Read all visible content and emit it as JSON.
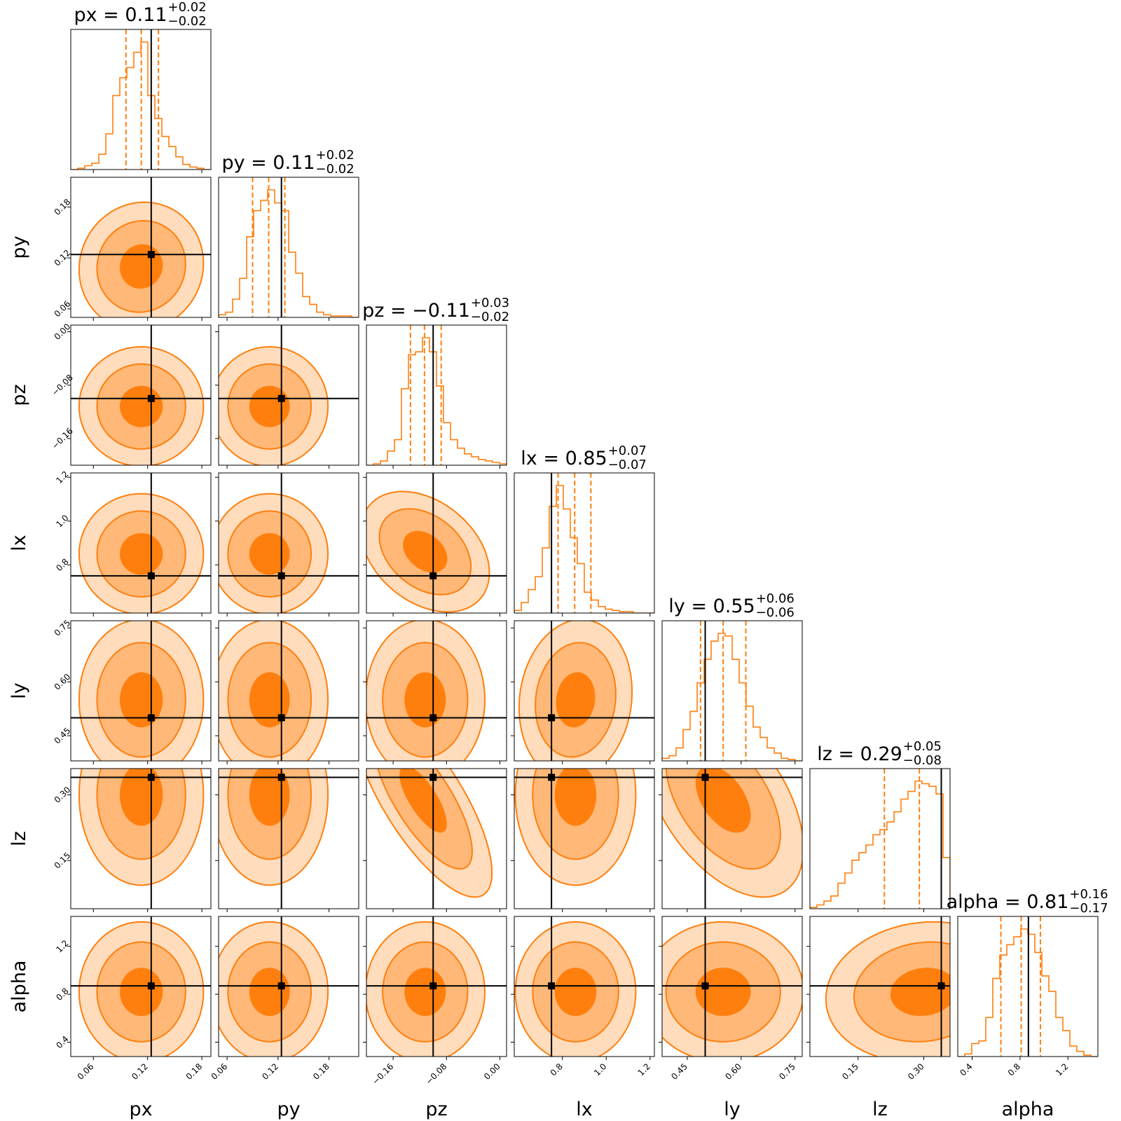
{
  "chart_data": {
    "type": "corner",
    "parameters": [
      {
        "name": "px",
        "range": [
          0.035,
          0.19
        ],
        "ticks": [
          0.06,
          0.12,
          0.18
        ],
        "tick_labels": [
          "0.06",
          "0.12",
          "0.18"
        ],
        "truth": 0.124,
        "title": {
          "prefix": "px = ",
          "median": "0.11",
          "plus": "+0.02",
          "minus": "−0.02"
        },
        "quantiles": [
          0.096,
          0.113,
          0.132
        ],
        "hist": [
          0,
          0.01,
          0.03,
          0.05,
          0.12,
          0.28,
          0.58,
          0.72,
          0.8,
          0.92,
          1.0,
          0.58,
          0.4,
          0.26,
          0.18,
          0.1,
          0.04,
          0.02,
          0.01,
          0
        ]
      },
      {
        "name": "py",
        "range": [
          0.05,
          0.215
        ],
        "ticks": [
          0.06,
          0.12,
          0.18
        ],
        "tick_labels": [
          "0.06",
          "0.12",
          "0.18"
        ],
        "truth": 0.124,
        "title": {
          "prefix": "py = ",
          "median": "0.11",
          "plus": "+0.02",
          "minus": "−0.02"
        },
        "quantiles": [
          0.09,
          0.109,
          0.128
        ],
        "hist": [
          0.02,
          0.04,
          0.14,
          0.3,
          0.62,
          0.82,
          0.9,
          0.98,
          0.88,
          0.82,
          0.5,
          0.34,
          0.16,
          0.1,
          0.04,
          0.02,
          0.01,
          0.01,
          0.01,
          0
        ]
      },
      {
        "name": "pz",
        "range": [
          -0.2,
          0.01
        ],
        "ticks": [
          -0.16,
          -0.08,
          0.0
        ],
        "tick_labels": [
          "−0.16",
          "−0.08",
          "0.00"
        ],
        "truth": -0.1,
        "title": {
          "prefix": "pz = ",
          "median": "−0.11",
          "plus": "+0.03",
          "minus": "−0.02"
        },
        "quantiles": [
          -0.134,
          -0.113,
          -0.088
        ],
        "hist": [
          0,
          0.01,
          0.03,
          0.1,
          0.18,
          0.54,
          0.78,
          0.8,
          0.9,
          0.8,
          0.56,
          0.3,
          0.18,
          0.12,
          0.08,
          0.06,
          0.04,
          0.03,
          0.02,
          0.01
        ]
      },
      {
        "name": "lx",
        "range": [
          0.58,
          1.22
        ],
        "ticks": [
          0.8,
          1.0,
          1.2
        ],
        "tick_labels": [
          "0.8",
          "1.0",
          "1.2"
        ],
        "truth": 0.75,
        "title": {
          "prefix": "lx = ",
          "median": "0.85",
          "plus": "+0.07",
          "minus": "−0.07"
        },
        "quantiles": [
          0.78,
          0.856,
          0.93
        ],
        "hist": [
          0.02,
          0.08,
          0.18,
          0.28,
          0.5,
          0.82,
          0.98,
          0.8,
          0.58,
          0.38,
          0.16,
          0.1,
          0.05,
          0.03,
          0.02,
          0.01,
          0.01,
          0,
          0,
          0
        ]
      },
      {
        "name": "ly",
        "range": [
          0.38,
          0.77
        ],
        "ticks": [
          0.45,
          0.6,
          0.75
        ],
        "tick_labels": [
          "0.45",
          "0.60",
          "0.75"
        ],
        "truth": 0.5,
        "title": {
          "prefix": "ly = ",
          "median": "0.55",
          "plus": "+0.06",
          "minus": "−0.06"
        },
        "quantiles": [
          0.487,
          0.55,
          0.613
        ],
        "hist": [
          0.02,
          0.04,
          0.1,
          0.24,
          0.38,
          0.6,
          0.78,
          0.92,
          0.98,
          0.96,
          0.78,
          0.6,
          0.42,
          0.26,
          0.18,
          0.1,
          0.06,
          0.02,
          0.01,
          0
        ]
      },
      {
        "name": "lz",
        "range": [
          0.04,
          0.36
        ],
        "ticks": [
          0.15,
          0.3
        ],
        "tick_labels": [
          "0.15",
          "0.30"
        ],
        "truth": 0.34,
        "title": {
          "prefix": "lz = ",
          "median": "0.29",
          "plus": "+0.05",
          "minus": "−0.08"
        },
        "quantiles": [
          0.21,
          0.29,
          0.34
        ],
        "hist": [
          0.01,
          0.03,
          0.06,
          0.1,
          0.2,
          0.28,
          0.38,
          0.44,
          0.5,
          0.58,
          0.62,
          0.68,
          0.76,
          0.86,
          0.92,
          1.0,
          0.98,
          0.96,
          0.9,
          0.4
        ]
      },
      {
        "name": "alpha",
        "range": [
          0.28,
          1.45
        ],
        "ticks": [
          0.4,
          0.8,
          1.2
        ],
        "tick_labels": [
          "0.4",
          "0.8",
          "1.2"
        ],
        "truth": 0.87,
        "title": {
          "prefix": "alpha = ",
          "median": "0.81",
          "plus": "+0.16",
          "minus": "−0.17"
        },
        "quantiles": [
          0.64,
          0.81,
          0.97
        ],
        "hist": [
          0,
          0.02,
          0.1,
          0.12,
          0.3,
          0.6,
          0.78,
          0.86,
          0.92,
          0.98,
          0.94,
          0.8,
          0.62,
          0.5,
          0.3,
          0.2,
          0.08,
          0.04,
          0.01,
          0
        ]
      }
    ],
    "pairs": [
      {
        "x": "px",
        "y": "py",
        "center": [
          0.113,
          0.11
        ],
        "sigma": [
          0.02,
          0.022
        ],
        "rho": 0.05
      },
      {
        "x": "px",
        "y": "pz",
        "center": [
          0.113,
          -0.112
        ],
        "sigma": [
          0.02,
          0.026
        ],
        "rho": 0.0
      },
      {
        "x": "py",
        "y": "pz",
        "center": [
          0.11,
          -0.112
        ],
        "sigma": [
          0.02,
          0.026
        ],
        "rho": 0.0
      },
      {
        "x": "px",
        "y": "lx",
        "center": [
          0.113,
          0.85
        ],
        "sigma": [
          0.02,
          0.08
        ],
        "rho": 0.0
      },
      {
        "x": "py",
        "y": "lx",
        "center": [
          0.11,
          0.85
        ],
        "sigma": [
          0.02,
          0.08
        ],
        "rho": 0.0
      },
      {
        "x": "pz",
        "y": "lx",
        "center": [
          -0.112,
          0.86
        ],
        "sigma": [
          0.028,
          0.08
        ],
        "rho": -0.35
      },
      {
        "x": "px",
        "y": "ly",
        "center": [
          0.113,
          0.55
        ],
        "sigma": [
          0.02,
          0.065
        ],
        "rho": 0.0
      },
      {
        "x": "py",
        "y": "ly",
        "center": [
          0.11,
          0.55
        ],
        "sigma": [
          0.02,
          0.065
        ],
        "rho": 0.0
      },
      {
        "x": "pz",
        "y": "ly",
        "center": [
          -0.112,
          0.55
        ],
        "sigma": [
          0.026,
          0.065
        ],
        "rho": 0.0
      },
      {
        "x": "lx",
        "y": "ly",
        "center": [
          0.86,
          0.55
        ],
        "sigma": [
          0.075,
          0.065
        ],
        "rho": 0.1
      },
      {
        "x": "px",
        "y": "lz",
        "center": [
          0.113,
          0.3
        ],
        "sigma": [
          0.02,
          0.06
        ],
        "rho": 0.0
      },
      {
        "x": "py",
        "y": "lz",
        "center": [
          0.11,
          0.3
        ],
        "sigma": [
          0.02,
          0.06
        ],
        "rho": 0.0
      },
      {
        "x": "pz",
        "y": "lz",
        "center": [
          -0.115,
          0.29
        ],
        "sigma": [
          0.03,
          0.065
        ],
        "rho": -0.75
      },
      {
        "x": "lx",
        "y": "lz",
        "center": [
          0.86,
          0.3
        ],
        "sigma": [
          0.08,
          0.06
        ],
        "rho": 0.0
      },
      {
        "x": "ly",
        "y": "lz",
        "center": [
          0.55,
          0.29
        ],
        "sigma": [
          0.065,
          0.065
        ],
        "rho": -0.5
      },
      {
        "x": "px",
        "y": "alpha",
        "center": [
          0.113,
          0.82
        ],
        "sigma": [
          0.02,
          0.17
        ],
        "rho": 0.0
      },
      {
        "x": "py",
        "y": "alpha",
        "center": [
          0.11,
          0.82
        ],
        "sigma": [
          0.02,
          0.17
        ],
        "rho": 0.0
      },
      {
        "x": "pz",
        "y": "alpha",
        "center": [
          -0.112,
          0.82
        ],
        "sigma": [
          0.026,
          0.17
        ],
        "rho": 0.0
      },
      {
        "x": "lx",
        "y": "alpha",
        "center": [
          0.86,
          0.82
        ],
        "sigma": [
          0.08,
          0.17
        ],
        "rho": 0.0
      },
      {
        "x": "ly",
        "y": "alpha",
        "center": [
          0.55,
          0.82
        ],
        "sigma": [
          0.065,
          0.17
        ],
        "rho": 0.0
      },
      {
        "x": "lz",
        "y": "alpha",
        "center": [
          0.3,
          0.82
        ],
        "sigma": [
          0.065,
          0.17
        ],
        "rho": 0.1
      }
    ],
    "contour_levels": [
      "1-sigma",
      "2-sigma",
      "3-sigma"
    ],
    "colors": {
      "contour_line": "#ff7f0e",
      "fill_inner": "#ff7f0e",
      "fill_mid": "#ffb877",
      "fill_outer": "#ffdcbc",
      "truth": "#000000",
      "quantile": "#ff7f0e"
    },
    "grid": false,
    "legend": "none"
  }
}
